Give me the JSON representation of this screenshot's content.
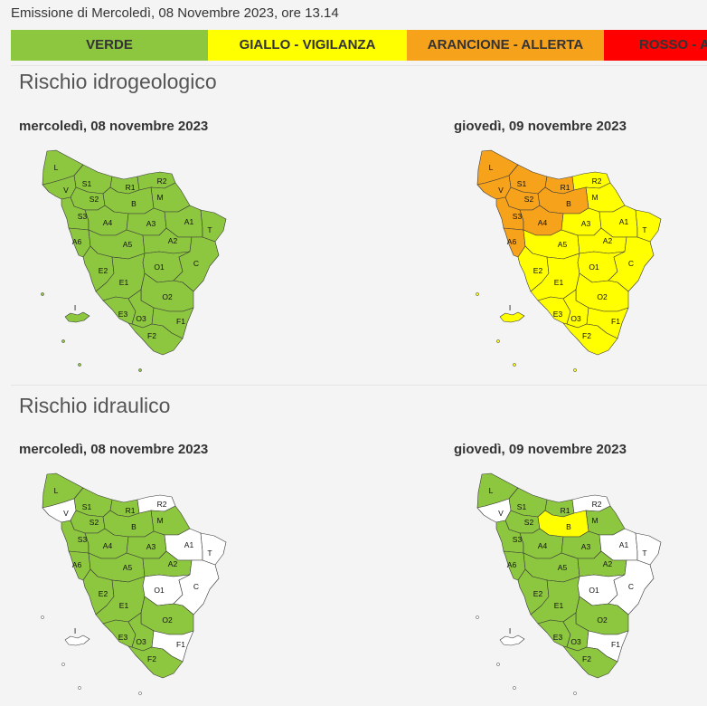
{
  "emission": "Emissione di Mercoledì, 08 Novembre 2023, ore 13.14",
  "legend": [
    {
      "label": "VERDE",
      "color": "#8dc63f"
    },
    {
      "label": "GIALLO - VIGILANZA",
      "color": "#ffff00"
    },
    {
      "label": "ARANCIONE - ALLERTA",
      "color": "#f7a21b"
    },
    {
      "label": "ROSSO - A",
      "color": "#ff0000"
    }
  ],
  "no_data_color": "#ffffff",
  "zones": [
    "L",
    "S1",
    "V",
    "R1",
    "R2",
    "M",
    "S2",
    "B",
    "S3",
    "A4",
    "A3",
    "A1",
    "T",
    "A6",
    "A5",
    "A2",
    "E2",
    "E1",
    "O1",
    "C",
    "O2",
    "E3",
    "O3",
    "F1",
    "F2",
    "I"
  ],
  "sections": [
    {
      "title": "Rischio idrogeologico",
      "maps": [
        {
          "date": "mercoledì, 08 novembre 2023",
          "levels": {
            "L": "VERDE",
            "S1": "VERDE",
            "V": "VERDE",
            "R1": "VERDE",
            "R2": "VERDE",
            "M": "VERDE",
            "S2": "VERDE",
            "B": "VERDE",
            "S3": "VERDE",
            "A4": "VERDE",
            "A3": "VERDE",
            "A1": "VERDE",
            "T": "VERDE",
            "A6": "VERDE",
            "A5": "VERDE",
            "A2": "VERDE",
            "E2": "VERDE",
            "E1": "VERDE",
            "O1": "VERDE",
            "C": "VERDE",
            "O2": "VERDE",
            "E3": "VERDE",
            "O3": "VERDE",
            "F1": "VERDE",
            "F2": "VERDE",
            "I": "VERDE"
          }
        },
        {
          "date": "giovedì, 09 novembre 2023",
          "levels": {
            "L": "ARANCIONE - ALLERTA",
            "S1": "ARANCIONE - ALLERTA",
            "V": "ARANCIONE - ALLERTA",
            "R1": "ARANCIONE - ALLERTA",
            "R2": "GIALLO - VIGILANZA",
            "M": "GIALLO - VIGILANZA",
            "S2": "ARANCIONE - ALLERTA",
            "B": "ARANCIONE - ALLERTA",
            "S3": "ARANCIONE - ALLERTA",
            "A4": "ARANCIONE - ALLERTA",
            "A3": "GIALLO - VIGILANZA",
            "A1": "GIALLO - VIGILANZA",
            "T": "GIALLO - VIGILANZA",
            "A6": "ARANCIONE - ALLERTA",
            "A5": "GIALLO - VIGILANZA",
            "A2": "GIALLO - VIGILANZA",
            "E2": "GIALLO - VIGILANZA",
            "E1": "GIALLO - VIGILANZA",
            "O1": "GIALLO - VIGILANZA",
            "C": "GIALLO - VIGILANZA",
            "O2": "GIALLO - VIGILANZA",
            "E3": "GIALLO - VIGILANZA",
            "O3": "GIALLO - VIGILANZA",
            "F1": "GIALLO - VIGILANZA",
            "F2": "GIALLO - VIGILANZA",
            "I": "GIALLO - VIGILANZA"
          }
        }
      ]
    },
    {
      "title": "Rischio idraulico",
      "maps": [
        {
          "date": "mercoledì, 08 novembre 2023",
          "levels": {
            "L": "VERDE",
            "S1": "VERDE",
            "V": null,
            "R1": "VERDE",
            "R2": null,
            "M": "VERDE",
            "S2": "VERDE",
            "B": "VERDE",
            "S3": "VERDE",
            "A4": "VERDE",
            "A3": "VERDE",
            "A1": null,
            "T": null,
            "A6": "VERDE",
            "A5": "VERDE",
            "A2": "VERDE",
            "E2": "VERDE",
            "E1": "VERDE",
            "O1": null,
            "C": null,
            "O2": "VERDE",
            "E3": "VERDE",
            "O3": "VERDE",
            "F1": null,
            "F2": "VERDE",
            "I": null
          }
        },
        {
          "date": "giovedì, 09 novembre 2023",
          "levels": {
            "L": "VERDE",
            "S1": "VERDE",
            "V": null,
            "R1": "VERDE",
            "R2": null,
            "M": "VERDE",
            "S2": "VERDE",
            "B": "GIALLO - VIGILANZA",
            "S3": "VERDE",
            "A4": "VERDE",
            "A3": "VERDE",
            "A1": null,
            "T": null,
            "A6": "VERDE",
            "A5": "VERDE",
            "A2": "VERDE",
            "E2": "VERDE",
            "E1": "VERDE",
            "O1": null,
            "C": null,
            "O2": "VERDE",
            "E3": "VERDE",
            "O3": "VERDE",
            "F1": null,
            "F2": "VERDE",
            "I": null
          }
        }
      ]
    }
  ]
}
